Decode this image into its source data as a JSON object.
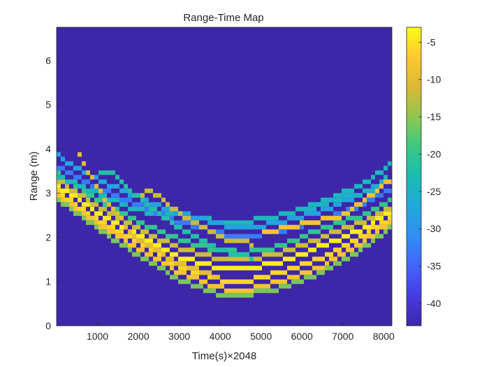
{
  "chart_data": {
    "type": "heatmap",
    "title": "Range-Time Map",
    "xlabel": "Time(s)×2048",
    "ylabel": "Range (m)",
    "xlim": [
      0,
      8200
    ],
    "ylim": [
      0,
      6.75
    ],
    "x_ticks": [
      1000,
      2000,
      3000,
      4000,
      5000,
      6000,
      7000,
      8000
    ],
    "y_ticks": [
      0,
      1,
      2,
      3,
      4,
      5,
      6
    ],
    "colorbar": {
      "colormap": "parula",
      "clim": [
        -43,
        -3
      ],
      "ticks": [
        -5,
        -10,
        -15,
        -20,
        -25,
        -30,
        -35,
        -40
      ]
    },
    "background_value": -43,
    "traces": [
      {
        "strength": -4,
        "points": [
          [
            0,
            3.2
          ],
          [
            1000,
            2.55
          ],
          [
            2000,
            2.05
          ],
          [
            3000,
            1.55
          ],
          [
            4000,
            1.3
          ],
          [
            4600,
            1.28
          ],
          [
            5500,
            1.45
          ],
          [
            6500,
            1.8
          ],
          [
            7500,
            2.2
          ],
          [
            8200,
            2.6
          ]
        ]
      },
      {
        "strength": -6,
        "points": [
          [
            0,
            3.05
          ],
          [
            1000,
            2.4
          ],
          [
            2000,
            1.9
          ],
          [
            3000,
            1.35
          ],
          [
            4000,
            1.05
          ],
          [
            4600,
            1.0
          ],
          [
            5500,
            1.2
          ],
          [
            6500,
            1.55
          ],
          [
            7500,
            2.05
          ],
          [
            8200,
            2.45
          ]
        ]
      },
      {
        "strength": -8,
        "points": [
          [
            0,
            2.95
          ],
          [
            1000,
            2.3
          ],
          [
            2000,
            1.75
          ],
          [
            3000,
            1.2
          ],
          [
            4000,
            0.85
          ],
          [
            4600,
            0.8
          ],
          [
            5500,
            1.0
          ],
          [
            6500,
            1.35
          ],
          [
            7500,
            1.9
          ],
          [
            8200,
            2.35
          ]
        ]
      },
      {
        "strength": -12,
        "points": [
          [
            0,
            3.3
          ],
          [
            1000,
            2.7
          ],
          [
            2000,
            2.2
          ],
          [
            3000,
            1.75
          ],
          [
            4000,
            1.5
          ],
          [
            4600,
            1.48
          ],
          [
            5500,
            1.65
          ],
          [
            6500,
            2.0
          ],
          [
            7500,
            2.35
          ],
          [
            8200,
            2.7
          ]
        ]
      },
      {
        "strength": -16,
        "points": [
          [
            0,
            2.9
          ],
          [
            1000,
            2.2
          ],
          [
            2000,
            1.6
          ],
          [
            3000,
            1.05
          ],
          [
            4000,
            0.72
          ],
          [
            4600,
            0.7
          ],
          [
            5500,
            0.85
          ],
          [
            6500,
            1.2
          ],
          [
            7500,
            1.75
          ],
          [
            8200,
            2.25
          ]
        ]
      },
      {
        "strength": -20,
        "points": [
          [
            0,
            3.45
          ],
          [
            1000,
            2.85
          ],
          [
            2000,
            2.35
          ],
          [
            3000,
            1.95
          ],
          [
            4000,
            1.7
          ],
          [
            4600,
            1.65
          ],
          [
            5500,
            1.8
          ],
          [
            6500,
            2.2
          ],
          [
            7500,
            2.5
          ],
          [
            8200,
            2.85
          ]
        ]
      },
      {
        "strength": -24,
        "points": [
          [
            0,
            3.4
          ],
          [
            1000,
            3.0
          ],
          [
            2000,
            2.6
          ],
          [
            3000,
            2.5
          ],
          [
            4000,
            2.35
          ],
          [
            4600,
            2.35
          ],
          [
            5500,
            2.5
          ],
          [
            6500,
            2.8
          ],
          [
            7500,
            3.2
          ],
          [
            8200,
            3.65
          ]
        ]
      },
      {
        "strength": -28,
        "points": [
          [
            0,
            3.85
          ],
          [
            1000,
            3.3
          ],
          [
            2000,
            2.9
          ],
          [
            3000,
            2.55
          ],
          [
            4000,
            2.3
          ],
          [
            4600,
            2.2
          ],
          [
            5500,
            2.35
          ],
          [
            6500,
            2.6
          ],
          [
            7500,
            3.0
          ],
          [
            8200,
            3.3
          ]
        ]
      },
      {
        "strength": -33,
        "points": [
          [
            0,
            3.6
          ],
          [
            1000,
            3.1
          ],
          [
            2000,
            2.75
          ],
          [
            3000,
            2.35
          ],
          [
            4000,
            2.1
          ],
          [
            4600,
            2.0
          ],
          [
            5500,
            2.15
          ],
          [
            6500,
            2.4
          ],
          [
            7500,
            2.75
          ],
          [
            8200,
            3.1
          ]
        ]
      },
      {
        "strength": -10,
        "points": [
          [
            500,
            3.95
          ],
          [
            1200,
            2.8
          ],
          [
            2000,
            1.95
          ],
          [
            3000,
            1.4
          ],
          [
            4000,
            1.1
          ]
        ]
      },
      {
        "strength": -22,
        "points": [
          [
            1000,
            3.4
          ],
          [
            1300,
            3.5
          ],
          [
            2000,
            2.9
          ],
          [
            3000,
            2.2
          ],
          [
            4000,
            1.7
          ],
          [
            4800,
            1.55
          ]
        ]
      },
      {
        "strength": -12,
        "points": [
          [
            2000,
            2.9
          ],
          [
            2300,
            3.05
          ],
          [
            3000,
            2.55
          ],
          [
            4000,
            2.0
          ],
          [
            4800,
            1.85
          ]
        ]
      },
      {
        "strength": -8,
        "points": [
          [
            5000,
            2.1
          ],
          [
            6000,
            2.3
          ],
          [
            7000,
            2.5
          ],
          [
            7800,
            3.0
          ],
          [
            8200,
            3.35
          ]
        ]
      },
      {
        "strength": -25,
        "points": [
          [
            6000,
            2.6
          ],
          [
            7000,
            2.9
          ],
          [
            7700,
            3.05
          ],
          [
            8100,
            3.45
          ]
        ]
      }
    ]
  }
}
